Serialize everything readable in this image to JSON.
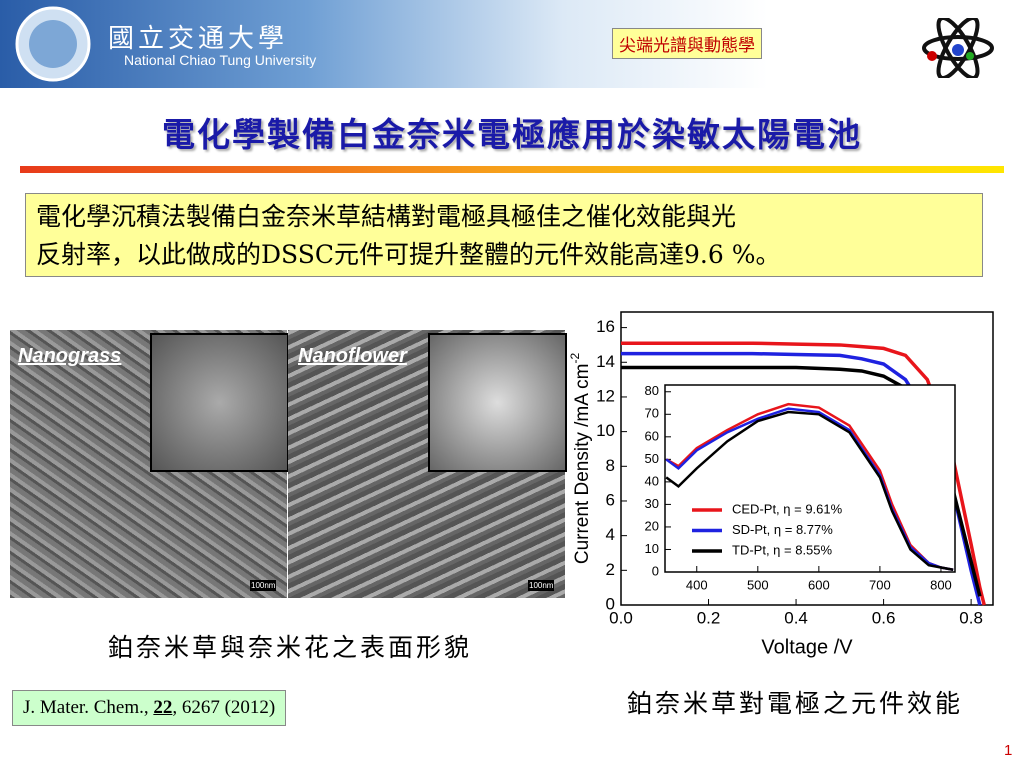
{
  "header": {
    "logo_zh": "國立交通大學",
    "logo_en": "National Chiao Tung University",
    "tag": "尖端光譜與動態學"
  },
  "title": "電化學製備白金奈米電極應用於染敏太陽電池",
  "summary": [
    "電化學沉積法製備白金奈米草結構對電極具極佳之催化效能與光",
    "反射率，以此做成的DSSC元件可提升整體的元件效能高達9.6 %。"
  ],
  "sem": {
    "labels": [
      "Nanograss",
      "Nanoflower"
    ],
    "scale": [
      "100nm",
      "100nm"
    ],
    "caption": "鉑奈米草與奈米花之表面形貌"
  },
  "reference": {
    "journal": "J. Mater. Chem., ",
    "volume": "22",
    "rest": ", 6267 (2012)"
  },
  "chart_caption": "鉑奈米草對電極之元件效能",
  "page_number": "1",
  "chart_data": [
    {
      "type": "line",
      "x_label": "Voltage /V",
      "y_label": "Current Density /mA cm",
      "y_label_sup": "-2",
      "x": [
        0,
        0.1,
        0.2,
        0.3,
        0.4,
        0.5,
        0.55,
        0.6,
        0.65,
        0.7,
        0.75,
        0.8,
        0.82,
        0.83
      ],
      "xlim": [
        0,
        0.85
      ],
      "xticks": [
        {
          "value": 0,
          "label": "0.0"
        },
        0.2,
        0.4,
        0.6,
        0.8
      ],
      "ylim": [
        0,
        16.9
      ],
      "yticks": [
        0,
        2,
        4,
        6,
        8,
        10,
        12,
        14,
        16
      ],
      "series": [
        {
          "name": "CED-Pt,  η = 9.61%",
          "color": "#e8151b",
          "values": [
            15.1,
            15.1,
            15.1,
            15.1,
            15.05,
            15.0,
            14.9,
            14.8,
            14.4,
            13.0,
            9.5,
            3.5,
            1.0,
            0
          ]
        },
        {
          "name": "SD-Pt,     η = 8.77%",
          "color": "#1f22e0",
          "values": [
            14.5,
            14.5,
            14.5,
            14.5,
            14.45,
            14.4,
            14.2,
            13.9,
            13.0,
            11.0,
            7.5,
            2.0,
            0,
            null
          ]
        },
        {
          "name": "TD-Pt,     η = 8.55%",
          "color": "#000000",
          "values": [
            13.7,
            13.7,
            13.7,
            13.7,
            13.7,
            13.6,
            13.5,
            13.2,
            12.5,
            10.8,
            7.5,
            2.5,
            0.5,
            null
          ]
        }
      ]
    },
    {
      "type": "line",
      "x": [
        350,
        370,
        400,
        450,
        500,
        550,
        600,
        650,
        700,
        720,
        750,
        780,
        800,
        820
      ],
      "xlim": [
        348,
        823
      ],
      "xticks": [
        400,
        500,
        600,
        700,
        800
      ],
      "ylim": [
        0,
        83
      ],
      "yticks": [
        0,
        10,
        20,
        30,
        40,
        50,
        60,
        70,
        80
      ],
      "series": [
        {
          "color": "#e8151b",
          "values": [
            50,
            47,
            55,
            63,
            70,
            74.5,
            73,
            65,
            45,
            30,
            12,
            4,
            2,
            1
          ]
        },
        {
          "color": "#1f22e0",
          "values": [
            50,
            46,
            54,
            62,
            68,
            72.5,
            71,
            63,
            43,
            28,
            11,
            4,
            2,
            1
          ]
        },
        {
          "color": "#000000",
          "values": [
            42,
            38,
            46,
            58,
            67,
            71,
            70,
            62,
            42,
            27,
            10,
            3,
            2,
            1
          ]
        }
      ]
    }
  ]
}
